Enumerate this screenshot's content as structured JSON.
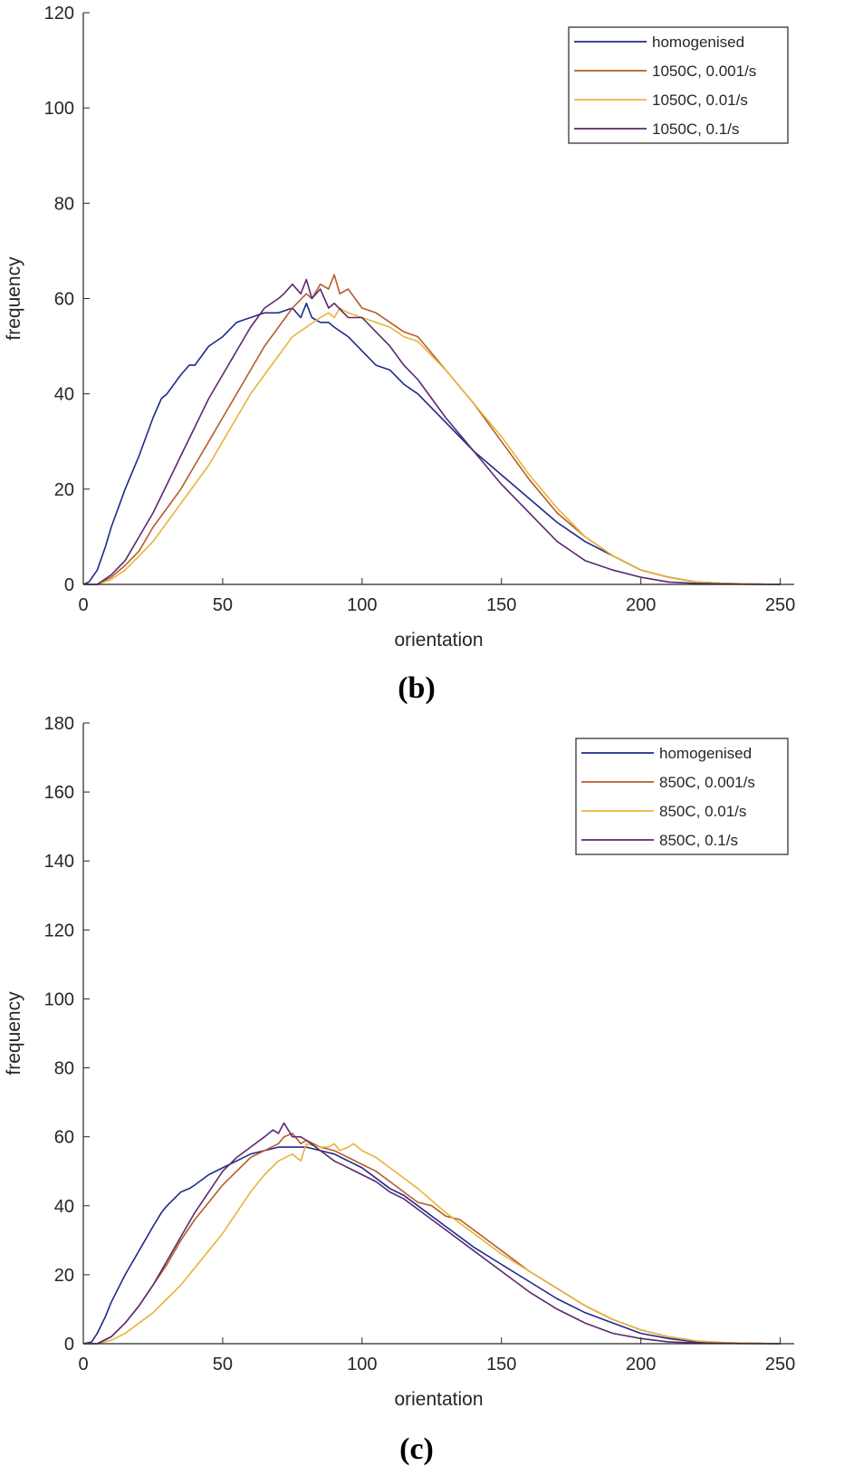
{
  "figure": {
    "background": "#ffffff"
  },
  "chart_data": [
    {
      "type": "line",
      "panel_label": "(b)",
      "xlabel": "orientation",
      "ylabel": "frequency",
      "xlim": [
        0,
        255
      ],
      "ylim": [
        0,
        120
      ],
      "xticks": [
        0,
        50,
        100,
        150,
        200,
        250
      ],
      "yticks": [
        0,
        20,
        40,
        60,
        80,
        100,
        120
      ],
      "legend_position": "top-right",
      "series": [
        {
          "name": "homogenised",
          "color": "#1f2a8a",
          "x": [
            0,
            2,
            5,
            8,
            10,
            15,
            20,
            25,
            28,
            30,
            35,
            38,
            40,
            45,
            50,
            55,
            60,
            65,
            70,
            75,
            78,
            80,
            82,
            85,
            88,
            90,
            95,
            100,
            105,
            110,
            115,
            120,
            130,
            140,
            150,
            160,
            170,
            180,
            190,
            200,
            210,
            220,
            230,
            240,
            250
          ],
          "y": [
            0,
            0.5,
            3,
            8,
            12,
            20,
            27,
            35,
            39,
            40,
            44,
            46,
            46,
            50,
            52,
            55,
            56,
            57,
            57,
            58,
            56,
            59,
            56,
            55,
            55,
            54,
            52,
            49,
            46,
            45,
            42,
            40,
            34,
            28,
            23,
            18,
            13,
            9,
            6,
            3,
            1.5,
            0.5,
            0.2,
            0.1,
            0
          ]
        },
        {
          "name": "1050C, 0.001/s",
          "color": "#b85c2a",
          "x": [
            0,
            5,
            10,
            15,
            20,
            25,
            30,
            35,
            40,
            45,
            50,
            55,
            60,
            65,
            70,
            75,
            80,
            82,
            85,
            88,
            90,
            92,
            95,
            100,
            105,
            110,
            115,
            120,
            130,
            140,
            150,
            160,
            170,
            180,
            190,
            200,
            210,
            220,
            230,
            240,
            250
          ],
          "y": [
            0,
            0,
            1.5,
            4,
            7,
            12,
            16,
            20,
            25,
            30,
            35,
            40,
            45,
            50,
            54,
            58,
            61,
            60,
            63,
            62,
            65,
            61,
            62,
            58,
            57,
            55,
            53,
            52,
            45,
            38,
            30,
            22,
            15,
            10,
            6,
            3,
            1.5,
            0.5,
            0.2,
            0.1,
            0
          ]
        },
        {
          "name": "1050C, 0.01/s",
          "color": "#e8b43a",
          "x": [
            0,
            5,
            10,
            15,
            20,
            25,
            30,
            35,
            40,
            45,
            50,
            55,
            60,
            65,
            70,
            75,
            80,
            85,
            88,
            90,
            92,
            95,
            100,
            105,
            110,
            115,
            120,
            130,
            140,
            150,
            160,
            170,
            180,
            190,
            200,
            210,
            220,
            230,
            240,
            250
          ],
          "y": [
            0,
            0,
            1,
            3,
            6,
            9,
            13,
            17,
            21,
            25,
            30,
            35,
            40,
            44,
            48,
            52,
            54,
            56,
            57,
            56,
            58,
            57,
            56,
            55,
            54,
            52,
            51,
            45,
            38,
            31,
            23,
            16,
            10,
            6,
            3,
            1.5,
            0.5,
            0.2,
            0.1,
            0
          ]
        },
        {
          "name": "1050C, 0.1/s",
          "color": "#5a2a6e",
          "x": [
            0,
            5,
            10,
            15,
            20,
            25,
            30,
            35,
            40,
            45,
            50,
            55,
            60,
            65,
            70,
            72,
            75,
            78,
            80,
            82,
            85,
            88,
            90,
            95,
            100,
            105,
            110,
            115,
            120,
            130,
            140,
            150,
            160,
            170,
            180,
            190,
            200,
            210,
            220,
            230,
            240,
            250
          ],
          "y": [
            0,
            0,
            2,
            5,
            10,
            15,
            21,
            27,
            33,
            39,
            44,
            49,
            54,
            58,
            60,
            61,
            63,
            61,
            64,
            60,
            62,
            58,
            59,
            56,
            56,
            53,
            50,
            46,
            43,
            35,
            28,
            21,
            15,
            9,
            5,
            3,
            1.5,
            0.5,
            0.2,
            0.1,
            0,
            0
          ]
        }
      ]
    },
    {
      "type": "line",
      "panel_label": "(c)",
      "xlabel": "orientation",
      "ylabel": "frequency",
      "xlim": [
        0,
        255
      ],
      "ylim": [
        0,
        180
      ],
      "xticks": [
        0,
        50,
        100,
        150,
        200,
        250
      ],
      "yticks": [
        0,
        20,
        40,
        60,
        80,
        100,
        120,
        140,
        160,
        180
      ],
      "legend_position": "top-right",
      "series": [
        {
          "name": "homogenised",
          "color": "#1f2a8a",
          "x": [
            0,
            3,
            5,
            8,
            10,
            15,
            20,
            25,
            28,
            30,
            35,
            38,
            40,
            45,
            50,
            55,
            60,
            65,
            70,
            75,
            80,
            85,
            90,
            95,
            100,
            105,
            110,
            115,
            120,
            130,
            140,
            150,
            160,
            170,
            180,
            190,
            200,
            210,
            220,
            230,
            240,
            250
          ],
          "y": [
            0,
            0.5,
            3,
            8,
            12,
            20,
            27,
            34,
            38,
            40,
            44,
            45,
            46,
            49,
            51,
            53,
            55,
            56,
            57,
            57,
            57,
            56,
            55,
            53,
            51,
            48,
            45,
            43,
            40,
            34,
            28,
            23,
            18,
            13,
            9,
            6,
            3,
            1.5,
            0.5,
            0.2,
            0.1,
            0
          ]
        },
        {
          "name": "850C, 0.001/s",
          "color": "#b85c2a",
          "x": [
            0,
            5,
            10,
            15,
            20,
            25,
            30,
            35,
            40,
            45,
            50,
            55,
            60,
            65,
            70,
            72,
            75,
            78,
            80,
            85,
            90,
            95,
            100,
            105,
            110,
            115,
            120,
            125,
            130,
            135,
            140,
            150,
            160,
            170,
            180,
            190,
            200,
            210,
            220,
            230,
            240,
            250
          ],
          "y": [
            0,
            0,
            2,
            6,
            11,
            17,
            23,
            30,
            36,
            41,
            46,
            50,
            54,
            56,
            58,
            60,
            61,
            58,
            59,
            57,
            56,
            54,
            52,
            50,
            47,
            44,
            41,
            40,
            37,
            36,
            33,
            27,
            21,
            16,
            11,
            7,
            4,
            2,
            0.8,
            0.3,
            0.1,
            0
          ]
        },
        {
          "name": "850C, 0.01/s",
          "color": "#e8b43a",
          "x": [
            0,
            5,
            10,
            15,
            20,
            25,
            30,
            35,
            40,
            45,
            50,
            55,
            60,
            65,
            70,
            75,
            78,
            80,
            85,
            88,
            90,
            92,
            95,
            97,
            100,
            105,
            110,
            115,
            120,
            130,
            140,
            150,
            160,
            170,
            180,
            190,
            200,
            210,
            220,
            230,
            240,
            250
          ],
          "y": [
            0,
            0,
            1,
            3,
            6,
            9,
            13,
            17,
            22,
            27,
            32,
            38,
            44,
            49,
            53,
            55,
            53,
            58,
            57,
            57,
            58,
            56,
            57,
            58,
            56,
            54,
            51,
            48,
            45,
            38,
            32,
            26,
            21,
            16,
            11,
            7,
            4,
            2,
            0.8,
            0.3,
            0.1,
            0
          ]
        },
        {
          "name": "850C, 0.1/s",
          "color": "#5a2a6e",
          "x": [
            0,
            5,
            10,
            15,
            20,
            25,
            30,
            35,
            40,
            45,
            50,
            55,
            60,
            65,
            68,
            70,
            72,
            75,
            78,
            80,
            85,
            90,
            95,
            100,
            105,
            110,
            115,
            120,
            130,
            140,
            150,
            160,
            170,
            180,
            190,
            200,
            210,
            220,
            230,
            240,
            250
          ],
          "y": [
            0,
            0,
            2,
            6,
            11,
            17,
            24,
            31,
            38,
            44,
            50,
            54,
            57,
            60,
            62,
            61,
            64,
            60,
            60,
            59,
            56,
            53,
            51,
            49,
            47,
            44,
            42,
            39,
            33,
            27,
            21,
            15,
            10,
            6,
            3,
            1.5,
            0.5,
            0.2,
            0.1,
            0,
            0
          ]
        }
      ]
    }
  ]
}
